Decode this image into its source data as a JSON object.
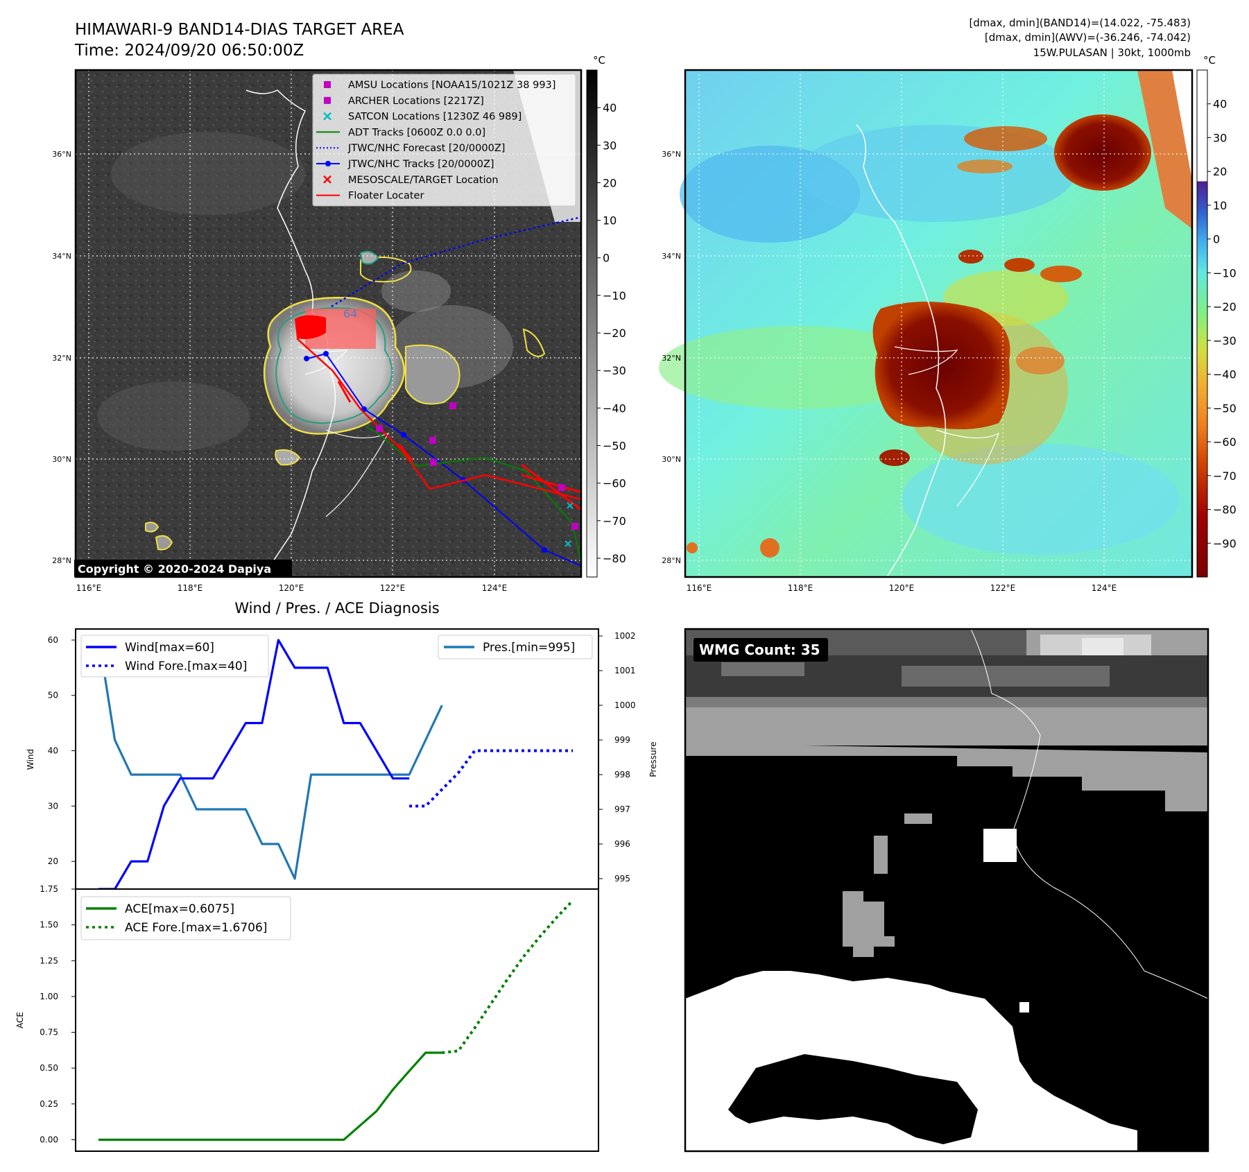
{
  "header": {
    "title_line1": "HIMAWARI-9 BAND14-DIAS TARGET AREA",
    "title_line2": "Time: 2024/09/20 06:50:00Z",
    "stats_line1": "[dmax, dmin](BAND14)=(14.022, -75.483)",
    "stats_line2": "[dmax, dmin](AWV)=(-36.246, -74.042)",
    "stats_line3": "15W.PULASAN | 30kt, 1000mb"
  },
  "map": {
    "lon_labels": [
      "116°E",
      "118°E",
      "120°E",
      "122°E",
      "124°E"
    ],
    "lat_labels": [
      "36°N",
      "34°N",
      "32°N",
      "30°N",
      "28°N"
    ],
    "copyright": "Copyright © 2020-2024 Dapiya",
    "marker_label": "64",
    "legend": [
      {
        "label": "AMSU Locations [NOAA15/1021Z 38 993]",
        "symbol": "square",
        "color": "#c000c0"
      },
      {
        "label": "ARCHER Locations [2217Z]",
        "symbol": "square",
        "color": "#c000c0"
      },
      {
        "label": "SATCON Locations [1230Z 46 989]",
        "symbol": "x",
        "color": "#00c0c0"
      },
      {
        "label": "ADT Tracks [0600Z 0.0 0.0]",
        "symbol": "line",
        "color": "#008000"
      },
      {
        "label": "JTWC/NHC Forecast [20/0000Z]",
        "symbol": "dotted",
        "color": "#0000ff"
      },
      {
        "label": "JTWC/NHC Tracks [20/0000Z]",
        "symbol": "line-dot",
        "color": "#0000ff"
      },
      {
        "label": "MESOSCALE/TARGET Location",
        "symbol": "x",
        "color": "#ff0000"
      },
      {
        "label": "Floater Locater",
        "symbol": "line",
        "color": "#ff0000"
      }
    ]
  },
  "colorbar_band14": {
    "unit": "°C",
    "ticks": [
      "40",
      "30",
      "20",
      "10",
      "0",
      "−10",
      "−20",
      "−30",
      "−40",
      "−50",
      "−60",
      "−70",
      "−80"
    ]
  },
  "colorbar_awv": {
    "unit": "°C",
    "ticks": [
      "40",
      "30",
      "20",
      "10",
      "0",
      "−10",
      "−20",
      "−30",
      "−40",
      "−50",
      "−60",
      "−70",
      "−80",
      "−90"
    ]
  },
  "wmg": {
    "label": "WMG Count: 35"
  },
  "chart_data": [
    {
      "type": "line",
      "title": "Wind / Pres. / ACE Diagnosis",
      "ylabel": "Wind",
      "ylim": [
        15,
        62
      ],
      "yticks": [
        20,
        30,
        40,
        50,
        60
      ],
      "x": [
        0,
        1,
        2,
        3,
        4,
        5,
        6,
        7,
        8,
        9,
        10,
        11,
        12,
        13,
        14,
        15,
        16,
        17,
        18,
        19
      ],
      "series": [
        {
          "name": "Wind[max=60]",
          "color": "#0000ff",
          "style": "solid",
          "x": [
            0,
            1,
            2,
            3,
            4,
            5,
            6,
            7,
            8,
            9,
            10,
            11,
            12,
            13,
            14,
            15,
            16,
            17,
            18,
            19
          ],
          "values": [
            15,
            15,
            20,
            20,
            30,
            35,
            35,
            35,
            40,
            45,
            45,
            60,
            55,
            55,
            55,
            45,
            45,
            40,
            35,
            35
          ]
        },
        {
          "name": "Wind Fore.[max=40]",
          "color": "#0000ff",
          "style": "dotted",
          "x": [
            19,
            20,
            21,
            22,
            23,
            24,
            25,
            26,
            27,
            28,
            29
          ],
          "values": [
            30,
            30,
            33,
            36,
            40,
            40,
            40,
            40,
            40,
            40,
            40
          ]
        }
      ],
      "secondary_axis": {
        "ylabel": "Pressure",
        "ylim": [
          994.7,
          1002.2
        ],
        "yticks": [
          995,
          996,
          997,
          998,
          999,
          1000,
          1001,
          1002
        ],
        "series": [
          {
            "name": "Pres.[min=995]",
            "color": "#1f77b4",
            "style": "solid",
            "x": [
              0,
              1,
              2,
              3,
              4,
              5,
              6,
              7,
              8,
              9,
              10,
              11,
              12,
              13,
              14,
              15,
              16,
              17,
              18,
              19,
              20,
              21
            ],
            "values": [
              1002,
              999,
              998,
              998,
              998,
              998,
              997,
              997,
              997,
              997,
              996,
              996,
              995,
              998,
              998,
              998,
              998,
              998,
              998,
              998,
              999,
              1000
            ]
          }
        ]
      }
    },
    {
      "type": "line",
      "ylabel": "ACE",
      "ylim": [
        -0.08,
        1.75
      ],
      "yticks": [
        "0.00",
        "0.25",
        "0.50",
        "0.75",
        "1.00",
        "1.25",
        "1.50",
        "1.75"
      ],
      "series": [
        {
          "name": "ACE[max=0.6075]",
          "color": "#008000",
          "style": "solid",
          "x": [
            0,
            5,
            10,
            15,
            16,
            17,
            18,
            19,
            20,
            21
          ],
          "values": [
            0,
            0,
            0,
            0,
            0.1,
            0.2,
            0.35,
            0.48,
            0.6075,
            0.6075
          ]
        },
        {
          "name": "ACE Fore.[max=1.6706]",
          "color": "#008000",
          "style": "dotted",
          "x": [
            21,
            22,
            23,
            24,
            25,
            26,
            27,
            28,
            29
          ],
          "values": [
            0.6075,
            0.62,
            0.78,
            0.95,
            1.12,
            1.28,
            1.42,
            1.55,
            1.6706
          ]
        }
      ]
    }
  ]
}
